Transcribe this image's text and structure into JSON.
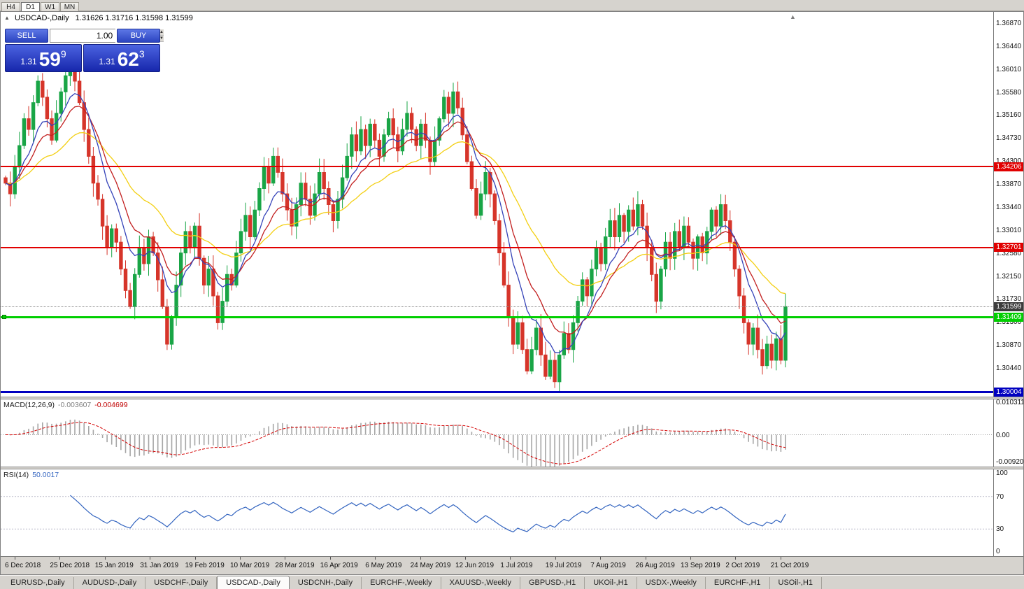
{
  "toolbar": {
    "periods": [
      "H4",
      "D1",
      "W1",
      "MN"
    ],
    "active_period": "D1"
  },
  "chart": {
    "symbol_label": "USDCAD-,Daily",
    "ohlc": "1.31626 1.31716 1.31598 1.31599"
  },
  "trade_panel": {
    "sell_label": "SELL",
    "buy_label": "BUY",
    "volume": "1.00",
    "sell_price": {
      "prefix": "1.31",
      "big": "59",
      "sup": "9"
    },
    "buy_price": {
      "prefix": "1.31",
      "big": "62",
      "sup": "3"
    }
  },
  "price_axis": {
    "labels": [
      "1.36870",
      "1.36440",
      "1.36010",
      "1.35580",
      "1.35160",
      "1.34730",
      "1.34300",
      "1.33870",
      "1.33440",
      "1.33010",
      "1.32580",
      "1.32150",
      "1.31730",
      "1.31300",
      "1.30870",
      "1.30440"
    ]
  },
  "levels": {
    "resistance1": {
      "value": 1.34206,
      "label": "1.34206",
      "color": "#e10000"
    },
    "resistance2": {
      "value": 1.32701,
      "label": "1.32701",
      "color": "#e10000"
    },
    "support_green": {
      "value": 1.31409,
      "label": "1.31409",
      "color": "#00cf00"
    },
    "support_blue": {
      "value": 1.30004,
      "label": "1.30004",
      "color": "#0000c0"
    },
    "current": {
      "value": 1.31599,
      "label": "1.31599",
      "color": "#3c3c3c"
    }
  },
  "macd_panel": {
    "name": "MACD(12,26,9)",
    "value1": "-0.003607",
    "value2": "-0.004699",
    "axis_labels": [
      "0.010311",
      "0.00",
      "-0.009203"
    ]
  },
  "rsi_panel": {
    "name": "RSI(14)",
    "value": "50.0017",
    "axis_labels": [
      "100",
      "70",
      "30",
      "0"
    ],
    "level_lines": [
      70,
      30
    ]
  },
  "date_axis": [
    "6 Dec 2018",
    "25 Dec 2018",
    "15 Jan 2019",
    "31 Jan 2019",
    "19 Feb 2019",
    "10 Mar 2019",
    "28 Mar 2019",
    "16 Apr 2019",
    "6 May 2019",
    "24 May 2019",
    "12 Jun 2019",
    "1 Jul 2019",
    "19 Jul 2019",
    "7 Aug 2019",
    "26 Aug 2019",
    "13 Sep 2019",
    "2 Oct 2019",
    "21 Oct 2019"
  ],
  "bottom_tabs": {
    "active_index": 3,
    "tabs": [
      "EURUSD-,Daily",
      "AUDUSD-,Daily",
      "USDCHF-,Daily",
      "USDCAD-,Daily",
      "USDCNH-,Daily",
      "EURCHF-,Weekly",
      "XAUUSD-,Weekly",
      "GBPUSD-,H1",
      "UKOil-,H1",
      "USDX-,Weekly",
      "EURCHF-,H1",
      "USOil-,H1"
    ],
    "active": "USDCAD-,Daily"
  },
  "chart_data": {
    "type": "candlestick",
    "symbol": "USDCAD",
    "timeframe": "Daily",
    "visible_high": 1.3687,
    "visible_low": 1.3,
    "first_open": 1.34,
    "closes": [
      1.339,
      1.337,
      1.342,
      1.346,
      1.351,
      1.349,
      1.354,
      1.358,
      1.355,
      1.351,
      1.347,
      1.352,
      1.356,
      1.359,
      1.3615,
      1.358,
      1.354,
      1.349,
      1.344,
      1.339,
      1.336,
      1.331,
      1.327,
      1.3305,
      1.328,
      1.323,
      1.319,
      1.316,
      1.322,
      1.327,
      1.324,
      1.329,
      1.326,
      1.321,
      1.316,
      1.309,
      1.314,
      1.32,
      1.326,
      1.33,
      1.327,
      1.331,
      1.325,
      1.32,
      1.323,
      1.318,
      1.313,
      1.317,
      1.322,
      1.32,
      1.326,
      1.33,
      1.333,
      1.329,
      1.334,
      1.338,
      1.342,
      1.339,
      1.344,
      1.341,
      1.337,
      1.334,
      1.331,
      1.335,
      1.339,
      1.336,
      1.333,
      1.337,
      1.341,
      1.338,
      1.335,
      1.332,
      1.336,
      1.34,
      1.344,
      1.348,
      1.345,
      1.349,
      1.346,
      1.35,
      1.347,
      1.344,
      1.348,
      1.351,
      1.348,
      1.345,
      1.349,
      1.352,
      1.349,
      1.346,
      1.35,
      1.347,
      1.343,
      1.347,
      1.351,
      1.355,
      1.352,
      1.356,
      1.353,
      1.348,
      1.343,
      1.338,
      1.333,
      1.337,
      1.341,
      1.337,
      1.332,
      1.326,
      1.32,
      1.314,
      1.309,
      1.313,
      1.308,
      1.304,
      1.308,
      1.312,
      1.307,
      1.303,
      1.306,
      1.302,
      1.307,
      1.311,
      1.308,
      1.313,
      1.317,
      1.321,
      1.318,
      1.323,
      1.327,
      1.324,
      1.329,
      1.332,
      1.329,
      1.333,
      1.33,
      1.334,
      1.331,
      1.335,
      1.331,
      1.327,
      1.322,
      1.317,
      1.323,
      1.328,
      1.325,
      1.33,
      1.327,
      1.331,
      1.328,
      1.325,
      1.329,
      1.326,
      1.33,
      1.334,
      1.331,
      1.335,
      1.332,
      1.328,
      1.323,
      1.318,
      1.313,
      1.309,
      1.312,
      1.308,
      1.305,
      1.309,
      1.306,
      1.31,
      1.306,
      1.316
    ],
    "indicators": {
      "moving_averages": [
        {
          "period": 8,
          "color": "#3442b8"
        },
        {
          "period": 13,
          "color": "#c21f1f"
        },
        {
          "period": 30,
          "color": "#f3cf12"
        }
      ],
      "macd": {
        "fast": 12,
        "slow": 26,
        "signal": 9,
        "histogram_color": "#a6a6a6",
        "signal_color": "#d40000"
      },
      "rsi": {
        "period": 14,
        "color": "#3465c0"
      }
    },
    "up_color": "#19a546",
    "down_color": "#d6352a"
  }
}
